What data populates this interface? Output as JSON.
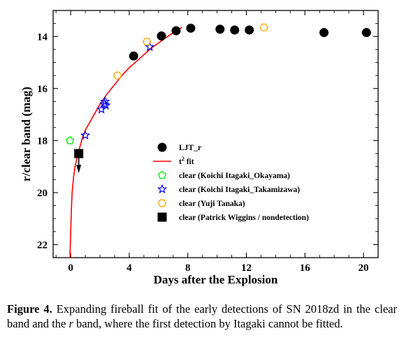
{
  "chart_data": {
    "type": "scatter",
    "xlabel": "Days after the Explosion",
    "ylabel": "r/clear band (mag)",
    "xlim": [
      -1.2,
      21
    ],
    "ylim": [
      22.5,
      13
    ],
    "y_inverted": true,
    "xticks": [
      0,
      4,
      8,
      12,
      16,
      20
    ],
    "yticks": [
      14,
      16,
      18,
      20,
      22
    ],
    "legend_position": "center-right",
    "fit_curve": {
      "name": "t² fit",
      "name_base": "t",
      "name_sup": "2",
      "name_suffix": " fit",
      "color": "#ff0000",
      "x": [
        -0.05,
        0.0,
        0.05,
        0.1,
        0.2,
        0.3,
        0.4,
        0.5,
        0.6,
        0.8,
        1.0,
        1.2,
        1.5,
        2.0,
        2.5,
        3.0,
        3.5,
        4.0,
        4.5,
        5.0,
        5.5,
        6.0,
        6.5,
        7.0,
        7.6
      ],
      "y": [
        22.5,
        21.6,
        20.6,
        20.0,
        19.4,
        19.0,
        18.75,
        18.5,
        18.3,
        17.9,
        17.6,
        17.4,
        17.1,
        16.6,
        16.2,
        15.85,
        15.5,
        15.2,
        14.95,
        14.7,
        14.45,
        14.25,
        14.05,
        13.85,
        13.65
      ]
    },
    "series": [
      {
        "name": "LJT_r",
        "marker": "circle-filled",
        "color": "#000000",
        "x": [
          4.3,
          6.2,
          7.2,
          8.2,
          10.2,
          11.2,
          12.2,
          17.3,
          20.2
        ],
        "y": [
          14.75,
          13.98,
          13.78,
          13.68,
          13.72,
          13.75,
          13.75,
          13.85,
          13.85
        ]
      },
      {
        "name": "clear (Koichi Itagaki_Okayama)",
        "marker": "pentagon-open",
        "color": "#00ee00",
        "x": [
          -0.05
        ],
        "y": [
          18.0
        ]
      },
      {
        "name": "clear (Koichi Itagaki_Takamizawa)",
        "marker": "star-open",
        "color": "#0000ff",
        "x": [
          1.0,
          2.1,
          2.3,
          2.4,
          2.35,
          5.4
        ],
        "y": [
          17.8,
          16.8,
          16.6,
          16.65,
          16.5,
          14.4
        ]
      },
      {
        "name": "clear (Yuji Tanaka)",
        "marker": "hexagon-open",
        "color": "#ffa500",
        "x": [
          3.2,
          5.2,
          13.2
        ],
        "y": [
          15.5,
          14.2,
          13.65
        ]
      },
      {
        "name": "clear (Patrick Wiggins / nondetection)",
        "marker": "square-filled",
        "color": "#000000",
        "x": [
          0.55
        ],
        "y": [
          18.5
        ],
        "upper_limit_arrow": true
      }
    ]
  },
  "caption": {
    "label": "Figure 4.",
    "text_before_italic": " Expanding fireball fit of the early detections of SN 2018zd in the clear band and the ",
    "italic": "r",
    "text_after_italic": " band, where the first detection by Itagaki cannot be fitted."
  }
}
